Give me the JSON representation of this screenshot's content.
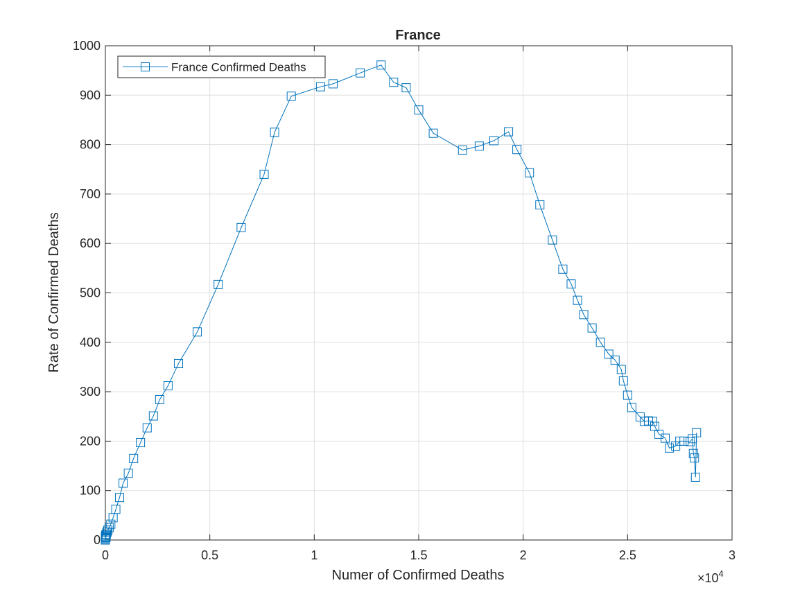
{
  "chart_data": {
    "type": "line",
    "title": "France",
    "xlabel": "Numer of Confirmed Deaths",
    "ylabel": "Rate of Confirmed Deaths",
    "x_exponent_label": "×10",
    "x_exponent_power": "4",
    "xlim": [
      0,
      30000
    ],
    "ylim": [
      0,
      1000
    ],
    "x_ticks": [
      0,
      5000,
      10000,
      15000,
      20000,
      25000,
      30000
    ],
    "x_tick_labels": [
      "0",
      "0.5",
      "1",
      "1.5",
      "2",
      "2.5",
      "3"
    ],
    "y_ticks": [
      0,
      100,
      200,
      300,
      400,
      500,
      600,
      700,
      800,
      900,
      1000
    ],
    "y_tick_labels": [
      "0",
      "100",
      "200",
      "300",
      "400",
      "500",
      "600",
      "700",
      "800",
      "900",
      "1000"
    ],
    "grid": true,
    "legend_position": "top-left",
    "marker": "square",
    "color": "#0072BD",
    "series": [
      {
        "name": "France Confirmed Deaths",
        "x": [
          0,
          0,
          0,
          0,
          10,
          20,
          30,
          50,
          80,
          120,
          180,
          260,
          370,
          500,
          680,
          850,
          1100,
          1350,
          1680,
          2000,
          2300,
          2600,
          3000,
          3500,
          4400,
          5400,
          6500,
          7600,
          8100,
          8900,
          10300,
          10900,
          12200,
          13200,
          13800,
          14400,
          15000,
          15700,
          17100,
          17900,
          18600,
          19300,
          19700,
          20300,
          20800,
          21400,
          21900,
          22300,
          22600,
          22900,
          23300,
          23700,
          24100,
          24400,
          24700,
          24800,
          25000,
          25200,
          25600,
          25800,
          26000,
          26200,
          26300,
          26500,
          26800,
          27000,
          27300,
          27500,
          27700,
          28000,
          28100,
          28150,
          28200,
          28250,
          28300
        ],
        "y": [
          0,
          2,
          4,
          6,
          8,
          10,
          5,
          12,
          16,
          20,
          25,
          32,
          45,
          62,
          86,
          115,
          135,
          165,
          197,
          227,
          251,
          284,
          312,
          357,
          421,
          517,
          632,
          740,
          825,
          898,
          917,
          923,
          945,
          961,
          926,
          915,
          870,
          823,
          789,
          797,
          808,
          826,
          790,
          743,
          678,
          607,
          548,
          518,
          485,
          456,
          429,
          400,
          376,
          364,
          345,
          322,
          293,
          268,
          249,
          240,
          241,
          240,
          230,
          214,
          206,
          186,
          190,
          200,
          200,
          199,
          205,
          175,
          166,
          127,
          217
        ]
      }
    ]
  }
}
